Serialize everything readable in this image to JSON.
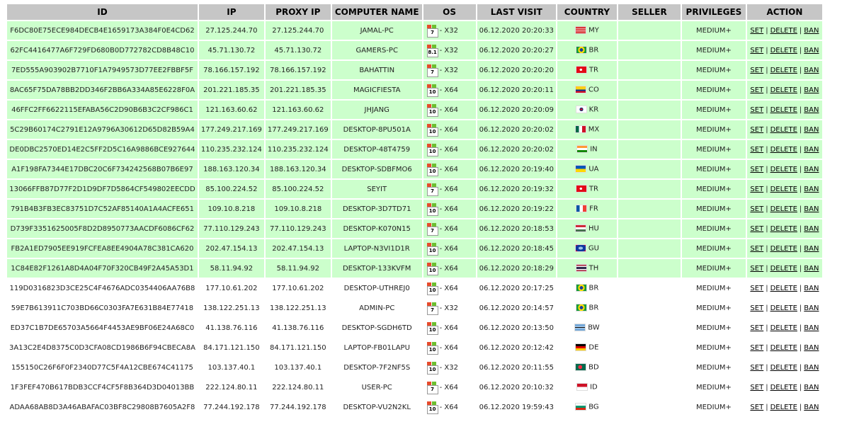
{
  "headers": {
    "id": "ID",
    "ip": "IP",
    "proxy_ip": "PROXY IP",
    "computer_name": "COMPUTER NAME",
    "os": "OS",
    "last_visit": "LAST VISIT",
    "country": "COUNTRY",
    "seller": "SELLER",
    "privileges": "PRIVILEGES",
    "action": "ACTION"
  },
  "actions": {
    "set": "SET",
    "delete": "DELETE",
    "ban": "BAN",
    "separator": "|"
  },
  "colors": {
    "online_row": "#ccffcc",
    "offline_row": "#ffffff",
    "header_bg": "#c6c6c6"
  },
  "rows": [
    {
      "status": "online",
      "id": "F6DC80E75ECE984DECB4E1659173A384F0E4CD62",
      "ip": "27.125.244.70",
      "proxy_ip": "27.125.244.70",
      "computer_name": "JAMAL-PC",
      "os_version": "7",
      "os_arch": "- X32",
      "last_visit": "06.12.2020 20:20:33",
      "country": "MY",
      "seller": "",
      "privileges": "MEDIUM+"
    },
    {
      "status": "online",
      "id": "62FC4416477A6F729FD680B0D772782CD8B48C10",
      "ip": "45.71.130.72",
      "proxy_ip": "45.71.130.72",
      "computer_name": "GAMERS-PC",
      "os_version": "8.1",
      "os_arch": "- X32",
      "last_visit": "06.12.2020 20:20:27",
      "country": "BR",
      "seller": "",
      "privileges": "MEDIUM+"
    },
    {
      "status": "online",
      "id": "7ED555A903902B7710F1A7949573D77EE2FBBF5F",
      "ip": "78.166.157.192",
      "proxy_ip": "78.166.157.192",
      "computer_name": "BAHATTIN",
      "os_version": "7",
      "os_arch": "- X32",
      "last_visit": "06.12.2020 20:20:20",
      "country": "TR",
      "seller": "",
      "privileges": "MEDIUM+"
    },
    {
      "status": "online",
      "id": "8AC65F75DA78BB2DD346F2BB6A334A85E6228F0A",
      "ip": "201.221.185.35",
      "proxy_ip": "201.221.185.35",
      "computer_name": "MAGICFIESTA",
      "os_version": "10",
      "os_arch": "- X64",
      "last_visit": "06.12.2020 20:20:11",
      "country": "CO",
      "seller": "",
      "privileges": "MEDIUM+"
    },
    {
      "status": "online",
      "id": "46FFC2FF6622115EFABA56C2D90B6B3C2CF986C1",
      "ip": "121.163.60.62",
      "proxy_ip": "121.163.60.62",
      "computer_name": "JHJANG",
      "os_version": "10",
      "os_arch": "- X64",
      "last_visit": "06.12.2020 20:20:09",
      "country": "KR",
      "seller": "",
      "privileges": "MEDIUM+"
    },
    {
      "status": "online",
      "id": "5C29B60174C2791E12A9796A30612D65D82B59A4",
      "ip": "177.249.217.169",
      "proxy_ip": "177.249.217.169",
      "computer_name": "DESKTOP-8PU501A",
      "os_version": "10",
      "os_arch": "- X64",
      "last_visit": "06.12.2020 20:20:02",
      "country": "MX",
      "seller": "",
      "privileges": "MEDIUM+"
    },
    {
      "status": "online",
      "id": "DE0DBC2570ED14E2C5FF2D5C16A9886BCE927644",
      "ip": "110.235.232.124",
      "proxy_ip": "110.235.232.124",
      "computer_name": "DESKTOP-48T4759",
      "os_version": "10",
      "os_arch": "- X64",
      "last_visit": "06.12.2020 20:20:02",
      "country": "IN",
      "seller": "",
      "privileges": "MEDIUM+"
    },
    {
      "status": "online",
      "id": "A1F198FA7344E17DBC20C6F734242568B07B6E97",
      "ip": "188.163.120.34",
      "proxy_ip": "188.163.120.34",
      "computer_name": "DESKTOP-SDBFMO6",
      "os_version": "10",
      "os_arch": "- X64",
      "last_visit": "06.12.2020 20:19:40",
      "country": "UA",
      "seller": "",
      "privileges": "MEDIUM+"
    },
    {
      "status": "online",
      "id": "13066FFB87D77F2D1D9DF7D5864CF549802EECDD",
      "ip": "85.100.224.52",
      "proxy_ip": "85.100.224.52",
      "computer_name": "SEYIT",
      "os_version": "7",
      "os_arch": "- X64",
      "last_visit": "06.12.2020 20:19:32",
      "country": "TR",
      "seller": "",
      "privileges": "MEDIUM+"
    },
    {
      "status": "online",
      "id": "791B4B3FB3EC83751D7C52AF85140A1A4ACFE651",
      "ip": "109.10.8.218",
      "proxy_ip": "109.10.8.218",
      "computer_name": "DESKTOP-3D7TD71",
      "os_version": "10",
      "os_arch": "- X64",
      "last_visit": "06.12.2020 20:19:22",
      "country": "FR",
      "seller": "",
      "privileges": "MEDIUM+"
    },
    {
      "status": "online",
      "id": "D739F3351625005F8D2D8950773AACDF6086CF62",
      "ip": "77.110.129.243",
      "proxy_ip": "77.110.129.243",
      "computer_name": "DESKTOP-K070N15",
      "os_version": "7",
      "os_arch": "- X64",
      "last_visit": "06.12.2020 20:18:53",
      "country": "HU",
      "seller": "",
      "privileges": "MEDIUM+"
    },
    {
      "status": "online",
      "id": "FB2A1ED7905EE919FCFEA8EE4904A78C381CA620",
      "ip": "202.47.154.13",
      "proxy_ip": "202.47.154.13",
      "computer_name": "LAPTOP-N3VI1D1R",
      "os_version": "10",
      "os_arch": "- X64",
      "last_visit": "06.12.2020 20:18:45",
      "country": "GU",
      "seller": "",
      "privileges": "MEDIUM+"
    },
    {
      "status": "online",
      "id": "1C84E82F1261A8D4A04F70F320CB49F2A45A53D1",
      "ip": "58.11.94.92",
      "proxy_ip": "58.11.94.92",
      "computer_name": "DESKTOP-133KVFM",
      "os_version": "10",
      "os_arch": "- X64",
      "last_visit": "06.12.2020 20:18:29",
      "country": "TH",
      "seller": "",
      "privileges": "MEDIUM+"
    },
    {
      "status": "offline",
      "id": "119D0316823D3CE25C4F4676ADC0354406AA76B8",
      "ip": "177.10.61.202",
      "proxy_ip": "177.10.61.202",
      "computer_name": "DESKTOP-UTHREJ0",
      "os_version": "10",
      "os_arch": "- X64",
      "last_visit": "06.12.2020 20:17:25",
      "country": "BR",
      "seller": "",
      "privileges": "MEDIUM+"
    },
    {
      "status": "offline",
      "id": "59E7B613911C703BD66C0303FA7E631B84E77418",
      "ip": "138.122.251.13",
      "proxy_ip": "138.122.251.13",
      "computer_name": "ADMIN-PC",
      "os_version": "7",
      "os_arch": "- X32",
      "last_visit": "06.12.2020 20:14:57",
      "country": "BR",
      "seller": "",
      "privileges": "MEDIUM+"
    },
    {
      "status": "offline",
      "id": "ED37C1B7DE65703A5664F4453AE9BF06E24A68C0",
      "ip": "41.138.76.116",
      "proxy_ip": "41.138.76.116",
      "computer_name": "DESKTOP-SGDH6TD",
      "os_version": "10",
      "os_arch": "- X64",
      "last_visit": "06.12.2020 20:13:50",
      "country": "BW",
      "seller": "",
      "privileges": "MEDIUM+"
    },
    {
      "status": "offline",
      "id": "3A13C2E4D8375C0D3CFA08CD1986B6F94CBECA8A",
      "ip": "84.171.121.150",
      "proxy_ip": "84.171.121.150",
      "computer_name": "LAPTOP-FB01LAPU",
      "os_version": "10",
      "os_arch": "- X64",
      "last_visit": "06.12.2020 20:12:42",
      "country": "DE",
      "seller": "",
      "privileges": "MEDIUM+"
    },
    {
      "status": "offline",
      "id": "155150C26F6F0F2340D77C5F4A12CBE674C41175",
      "ip": "103.137.40.1",
      "proxy_ip": "103.137.40.1",
      "computer_name": "DESKTOP-7F2NF5S",
      "os_version": "10",
      "os_arch": "- X32",
      "last_visit": "06.12.2020 20:11:55",
      "country": "BD",
      "seller": "",
      "privileges": "MEDIUM+"
    },
    {
      "status": "offline",
      "id": "1F3FEF470B617BDB3CCF4CF5F8B364D3D04013BB",
      "ip": "222.124.80.11",
      "proxy_ip": "222.124.80.11",
      "computer_name": "USER-PC",
      "os_version": "7",
      "os_arch": "- X64",
      "last_visit": "06.12.2020 20:10:32",
      "country": "ID",
      "seller": "",
      "privileges": "MEDIUM+"
    },
    {
      "status": "offline",
      "id": "ADAA68AB8D3A46ABAFAC03BF8C29808B7605A2F8",
      "ip": "77.244.192.178",
      "proxy_ip": "77.244.192.178",
      "computer_name": "DESKTOP-VU2N2KL",
      "os_version": "10",
      "os_arch": "- X64",
      "last_visit": "06.12.2020 19:59:43",
      "country": "BG",
      "seller": "",
      "privileges": "MEDIUM+"
    }
  ]
}
